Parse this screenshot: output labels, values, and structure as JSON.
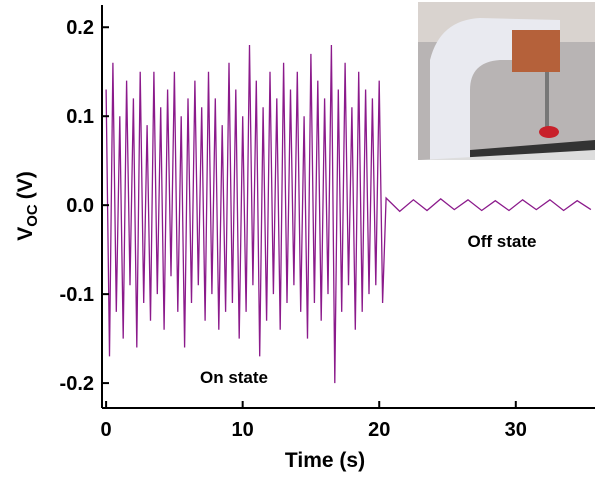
{
  "chart_data": {
    "type": "line",
    "xlabel": "Time (s)",
    "ylabel_parts": [
      "V",
      "OC",
      "(V)"
    ],
    "annotations": [
      "On state",
      "Off state"
    ],
    "xlim": [
      -0.3,
      35.8
    ],
    "ylim": [
      -0.228,
      0.225
    ],
    "xticks": [
      0,
      10,
      20,
      30
    ],
    "yticks": [
      -0.2,
      -0.1,
      {
        "value": 0,
        "label": "0.0"
      },
      0.1,
      0.2
    ],
    "series": [
      {
        "color": "#8b1a8b",
        "x": [
          0,
          0.25,
          0.5,
          0.75,
          1,
          1.25,
          1.5,
          1.75,
          2,
          2.25,
          2.5,
          2.75,
          3,
          3.25,
          3.5,
          3.75,
          4,
          4.25,
          4.5,
          4.75,
          5,
          5.25,
          5.5,
          5.75,
          6,
          6.25,
          6.5,
          6.75,
          7,
          7.25,
          7.5,
          7.75,
          8,
          8.25,
          8.5,
          8.75,
          9,
          9.25,
          9.5,
          9.75,
          10,
          10.25,
          10.5,
          10.75,
          11,
          11.25,
          11.5,
          11.75,
          12,
          12.25,
          12.5,
          12.75,
          13,
          13.25,
          13.5,
          13.75,
          14,
          14.25,
          14.5,
          14.75,
          15,
          15.25,
          15.5,
          15.75,
          16,
          16.25,
          16.5,
          16.75,
          17,
          17.25,
          17.5,
          17.75,
          18,
          18.25,
          18.5,
          18.75,
          19,
          19.25,
          19.5,
          19.75,
          20,
          20.25,
          20.5,
          21.5,
          22.5,
          23.5,
          24.5,
          25.5,
          26.5,
          27.5,
          28.5,
          29.5,
          30.5,
          31.5,
          32.5,
          33.5,
          34.5,
          35.5
        ],
        "values": [
          0.13,
          -0.17,
          0.16,
          -0.12,
          0.1,
          -0.15,
          0.14,
          -0.09,
          0.12,
          -0.16,
          0.15,
          -0.11,
          0.09,
          -0.13,
          0.15,
          -0.1,
          0.11,
          -0.14,
          0.13,
          -0.08,
          0.15,
          -0.12,
          0.1,
          -0.16,
          0.12,
          -0.11,
          0.14,
          -0.09,
          0.11,
          -0.13,
          0.15,
          -0.1,
          0.12,
          -0.14,
          0.09,
          -0.12,
          0.16,
          -0.11,
          0.13,
          -0.15,
          0.1,
          -0.12,
          0.18,
          -0.09,
          0.14,
          -0.17,
          0.11,
          -0.13,
          0.15,
          -0.1,
          0.12,
          -0.14,
          0.16,
          -0.11,
          0.13,
          -0.09,
          0.15,
          -0.12,
          0.1,
          -0.15,
          0.17,
          -0.11,
          0.14,
          -0.13,
          0.12,
          -0.1,
          0.18,
          -0.2,
          0.13,
          -0.12,
          0.16,
          -0.09,
          0.11,
          -0.14,
          0.15,
          -0.12,
          0.13,
          -0.1,
          0.12,
          -0.09,
          0.14,
          -0.11,
          0.008,
          -0.007,
          0.006,
          -0.006,
          0.007,
          -0.005,
          0.006,
          -0.006,
          0.005,
          -0.006,
          0.006,
          -0.005,
          0.006,
          -0.006,
          0.005,
          -0.005
        ]
      }
    ]
  }
}
